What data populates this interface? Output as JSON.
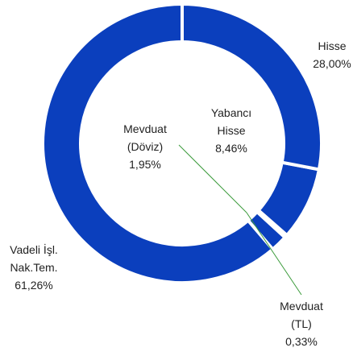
{
  "chart_data": {
    "type": "donut",
    "categories": [
      "Hisse",
      "Yabancı Hisse",
      "Mevduat (TL)",
      "Mevduat (Döviz)",
      "Vadeli İşl. Nak.Tem."
    ],
    "values": [
      28.0,
      8.46,
      0.33,
      1.95,
      61.26
    ],
    "value_labels": [
      "28,00%",
      "8,46%",
      "0,33%",
      "1,95%",
      "61,26%"
    ],
    "color": "#0b3fbd"
  }
}
